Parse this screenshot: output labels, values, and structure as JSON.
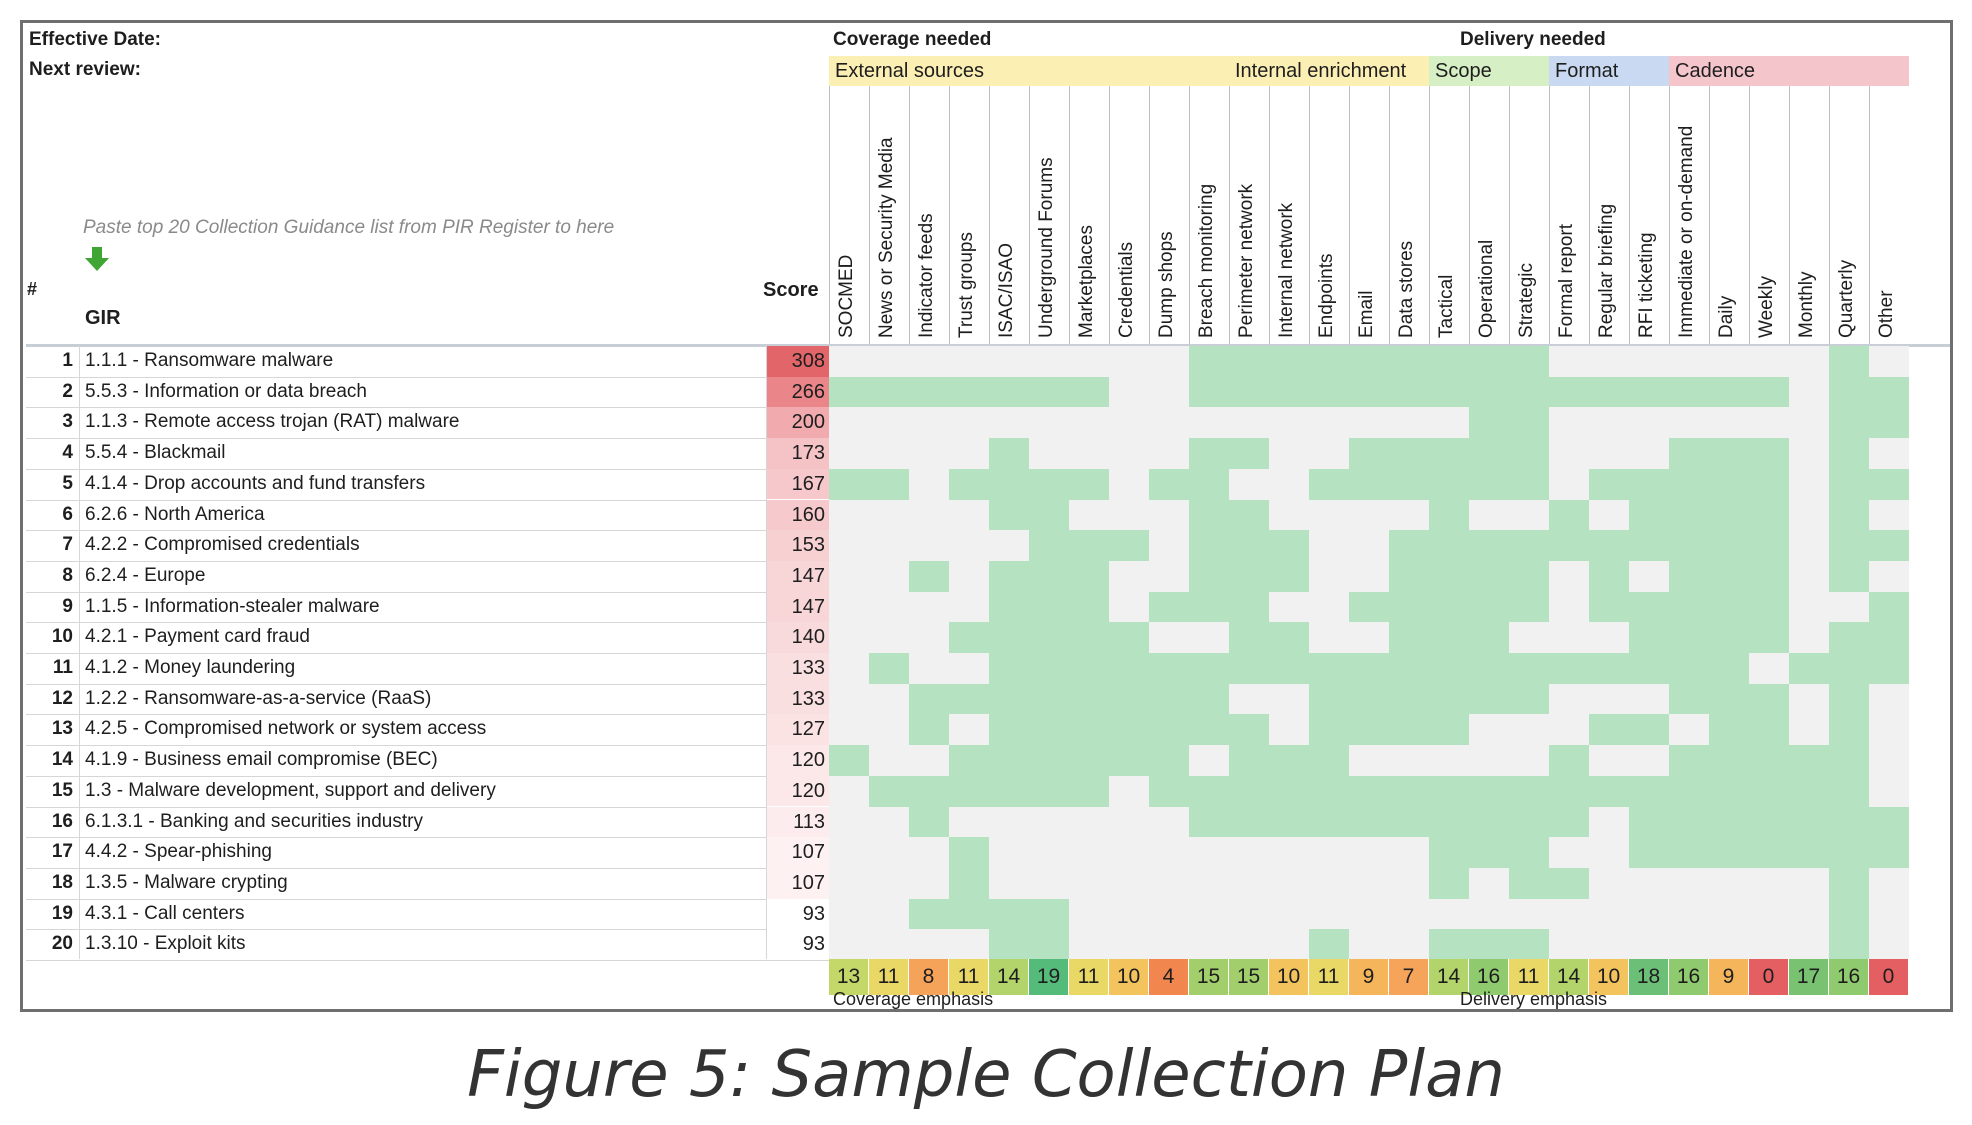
{
  "header": {
    "effective_date_label": "Effective Date:",
    "next_review_label": "Next review:",
    "paste_hint": "Paste top 20 Collection Guidance list from PIR Register to here",
    "hash_label": "#",
    "gir_label": "GIR",
    "score_label": "Score",
    "coverage_needed": "Coverage needed",
    "delivery_needed": "Delivery needed",
    "coverage_emphasis": "Coverage emphasis",
    "delivery_emphasis": "Delivery emphasis"
  },
  "groups": [
    {
      "label": "External sources",
      "color": "#fcefb4",
      "start": 0,
      "span": 10
    },
    {
      "label": "Internal enrichment",
      "color": "#fcefb4",
      "start": 10,
      "span": 5
    },
    {
      "label": "Scope",
      "color": "#d7efc4",
      "start": 15,
      "span": 3
    },
    {
      "label": "Format",
      "color": "#c9d9f2",
      "start": 18,
      "span": 3
    },
    {
      "label": "Cadence",
      "color": "#f5c5cc",
      "start": 21,
      "span": 6
    }
  ],
  "columns": [
    "SOCMED",
    "News or Security Media",
    "Indicator feeds",
    "Trust groups",
    "ISAC/ISAO",
    "Underground Forums",
    "Marketplaces",
    "Credentials",
    "Dump shops",
    "Breach monitoring",
    "Perimeter network",
    "Internal network",
    "Endpoints",
    "Email",
    "Data stores",
    "Tactical",
    "Operational",
    "Strategic",
    "Formal report",
    "Regular briefing",
    "RFI ticketing",
    "Immediate or on-demand",
    "Daily",
    "Weekly",
    "Monthly",
    "Quarterly",
    "Other"
  ],
  "rows": [
    {
      "n": "1",
      "gir": "1.1.1 - Ransomware malware",
      "score": "308"
    },
    {
      "n": "2",
      "gir": "5.5.3 - Information or data breach",
      "score": "266"
    },
    {
      "n": "3",
      "gir": "1.1.3 - Remote access trojan (RAT) malware",
      "score": "200"
    },
    {
      "n": "4",
      "gir": "5.5.4 - Blackmail",
      "score": "173"
    },
    {
      "n": "5",
      "gir": "4.1.4 - Drop accounts and fund transfers",
      "score": "167"
    },
    {
      "n": "6",
      "gir": "6.2.6 - North America",
      "score": "160"
    },
    {
      "n": "7",
      "gir": "4.2.2 - Compromised credentials",
      "score": "153"
    },
    {
      "n": "8",
      "gir": "6.2.4 - Europe",
      "score": "147"
    },
    {
      "n": "9",
      "gir": "1.1.5 - Information-stealer malware",
      "score": "147"
    },
    {
      "n": "10",
      "gir": "4.2.1 - Payment card fraud",
      "score": "140"
    },
    {
      "n": "11",
      "gir": "4.1.2 - Money laundering",
      "score": "133"
    },
    {
      "n": "12",
      "gir": "1.2.2 - Ransomware-as-a-service (RaaS)",
      "score": "133"
    },
    {
      "n": "13",
      "gir": "4.2.5 - Compromised network or system access",
      "score": "127"
    },
    {
      "n": "14",
      "gir": "4.1.9 - Business email compromise (BEC)",
      "score": "120"
    },
    {
      "n": "15",
      "gir": "1.3 - Malware development, support and delivery",
      "score": "120"
    },
    {
      "n": "16",
      "gir": "6.1.3.1 - Banking and securities industry",
      "score": "113"
    },
    {
      "n": "17",
      "gir": "4.4.2 - Spear-phishing",
      "score": "107"
    },
    {
      "n": "18",
      "gir": "1.3.5 - Malware crypting",
      "score": "107"
    },
    {
      "n": "19",
      "gir": "4.3.1 - Call centers",
      "score": "93"
    },
    {
      "n": "20",
      "gir": "1.3.10 - Exploit kits",
      "score": "93"
    }
  ],
  "score_colors": [
    "#e26569",
    "#ea8589",
    "#f1aaae",
    "#f5c3c6",
    "#f6c8cb",
    "#f6cacd",
    "#f7d0d2",
    "#f8d6d8",
    "#f8d6d8",
    "#f9dadc",
    "#fadfe1",
    "#fadfe1",
    "#fbe3e4",
    "#fce8e9",
    "#fce8e9",
    "#fdeced",
    "#fef1f1",
    "#fef1f1",
    "#ffffff",
    "#ffffff"
  ],
  "grid": [
    "000000000111111111000000010",
    "111111100111111111111111011",
    "000000000000000011000000011",
    "000010000110011111000111010",
    "110111101100111111011111011",
    "000011000110000100101111010",
    "000001110111001111111111011",
    "001011100111001111010111010",
    "000011101110011111011111001",
    "000111110011001110001111011",
    "010011111111111111111110111",
    "001111111100111111000111010",
    "001011111110111100011011010",
    "100111111011100000100111110",
    "011111101111111111111111110",
    "001000000111111111101111111",
    "000100000000000111001111111",
    "000100000000000101100000010",
    "001111000000000000000000010",
    "000011000000100111000000010"
  ],
  "cell_colors": {
    "on": "#b5e3c2",
    "off": "#f1f1f1"
  },
  "totals": [
    "13",
    "11",
    "8",
    "11",
    "14",
    "19",
    "11",
    "10",
    "4",
    "15",
    "15",
    "10",
    "11",
    "9",
    "7",
    "14",
    "16",
    "11",
    "14",
    "10",
    "18",
    "16",
    "9",
    "0",
    "17",
    "16",
    "0"
  ],
  "total_colors": [
    "#c4d86a",
    "#e9d866",
    "#f6a35a",
    "#e9d866",
    "#b2d46a",
    "#55bb7b",
    "#e9d866",
    "#f3c35d",
    "#f2864f",
    "#a2cf6c",
    "#a2cf6c",
    "#f3c35d",
    "#e9d866",
    "#f5b65b",
    "#f5a45a",
    "#b2d46a",
    "#8fca6f",
    "#e9d866",
    "#b2d46a",
    "#f3c35d",
    "#6cbf76",
    "#8fca6f",
    "#f5b65b",
    "#e35f62",
    "#78c272",
    "#8fca6f",
    "#e35f62"
  ],
  "caption": "Figure 5: Sample Collection Plan"
}
